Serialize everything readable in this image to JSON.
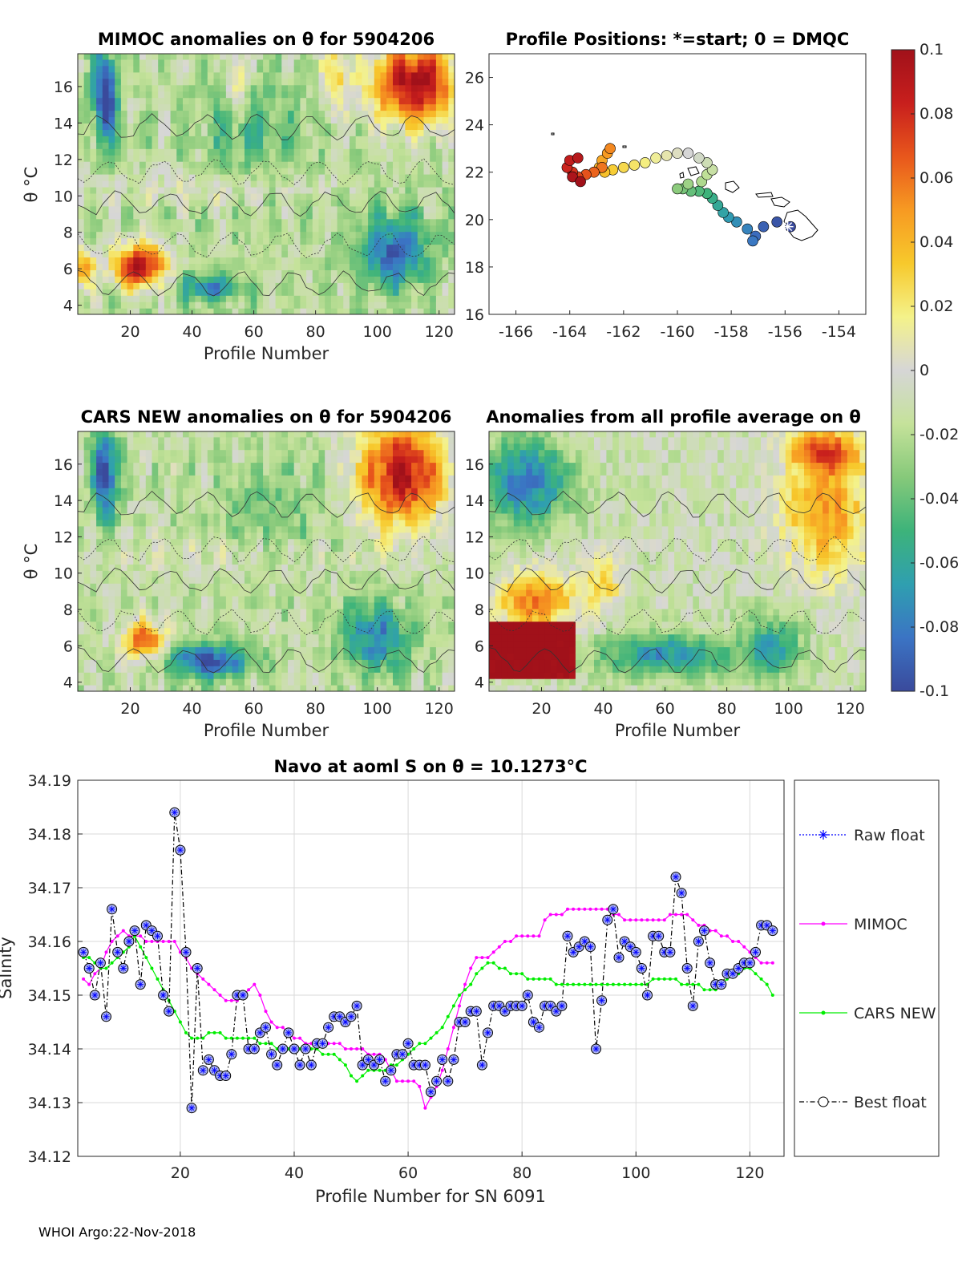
{
  "footer": "WHOI Argo:22-Nov-2018",
  "colors": {
    "colormap": [
      "#3a4a9c",
      "#3b74c4",
      "#2f9fb0",
      "#3db37a",
      "#86c97a",
      "#c5e29a",
      "#d6d6d6",
      "#f4f28a",
      "#f7c92c",
      "#f79a22",
      "#e8571c",
      "#c81f1d",
      "#a1111a"
    ],
    "mimoc": "#ff00ff",
    "cars": "#00ee00",
    "best": "#000000",
    "raw": "#0000ff"
  },
  "colorbar": {
    "ticks": [
      "0.1",
      "0.08",
      "0.06",
      "0.04",
      "0.02",
      "0",
      "-0.02",
      "-0.04",
      "-0.06",
      "-0.08",
      "-0.1"
    ]
  },
  "panels": {
    "mimoc": {
      "title": "MIMOC anomalies on θ  for 5904206",
      "ylabel": "θ °C",
      "xlabel": "Profile Number"
    },
    "cars": {
      "title": "CARS NEW anomalies on θ for 5904206",
      "ylabel": "θ °C",
      "xlabel": "Profile Number"
    },
    "avg": {
      "title": "Anomalies from all profile average on θ",
      "xlabel": "Profile Number"
    },
    "map": {
      "title": "Profile Positions: *=start; 0 = DMQC"
    }
  },
  "salinity": {
    "title": "Navo at aoml S on θ = 10.1273°C",
    "xlabel": "Profile Number for SN 6091",
    "ylabel": "Salinity"
  },
  "chart_data": [
    {
      "type": "heatmap",
      "id": "mimoc",
      "title": "MIMOC anomalies on θ for 5904206",
      "xlabel": "Profile Number",
      "ylabel": "θ °C",
      "xlim": [
        3,
        125
      ],
      "ylim": [
        3.5,
        17.8
      ],
      "xticks": [
        20,
        40,
        60,
        80,
        100,
        120
      ],
      "yticks": [
        4,
        6,
        8,
        10,
        12,
        14,
        16
      ],
      "clim": [
        -0.1,
        0.1
      ],
      "profiles": 124
    },
    {
      "type": "scatter",
      "id": "map",
      "title": "Profile Positions: *=start; 0 = DMQC",
      "xlim": [
        -167,
        -153
      ],
      "ylim": [
        16,
        27
      ],
      "xticks": [
        -166,
        -164,
        -162,
        -160,
        -158,
        -156,
        -154
      ],
      "yticks": [
        16,
        18,
        20,
        22,
        24,
        26
      ],
      "track": [
        [
          -155.8,
          19.7
        ],
        [
          -156.3,
          19.9
        ],
        [
          -156.8,
          19.7
        ],
        [
          -157.1,
          19.3
        ],
        [
          -157.2,
          19.1
        ],
        [
          -157.4,
          19.6
        ],
        [
          -157.8,
          19.9
        ],
        [
          -158.1,
          20.1
        ],
        [
          -158.3,
          20.3
        ],
        [
          -158.5,
          20.6
        ],
        [
          -158.7,
          20.9
        ],
        [
          -158.9,
          21.1
        ],
        [
          -159.2,
          21.2
        ],
        [
          -159.5,
          21.2
        ],
        [
          -159.8,
          21.3
        ],
        [
          -160.0,
          21.3
        ],
        [
          -159.6,
          21.5
        ],
        [
          -159.1,
          21.6
        ],
        [
          -158.9,
          21.9
        ],
        [
          -158.7,
          22.1
        ],
        [
          -158.9,
          22.4
        ],
        [
          -159.2,
          22.6
        ],
        [
          -159.6,
          22.8
        ],
        [
          -160.0,
          22.8
        ],
        [
          -160.4,
          22.7
        ],
        [
          -160.8,
          22.6
        ],
        [
          -161.2,
          22.4
        ],
        [
          -161.6,
          22.3
        ],
        [
          -162.0,
          22.2
        ],
        [
          -162.4,
          22.1
        ],
        [
          -162.7,
          22.0
        ],
        [
          -162.9,
          22.2
        ],
        [
          -162.8,
          22.5
        ],
        [
          -162.6,
          22.8
        ],
        [
          -162.5,
          23.0
        ],
        [
          -162.8,
          22.2
        ],
        [
          -163.1,
          22.0
        ],
        [
          -163.4,
          21.9
        ],
        [
          -163.7,
          21.8
        ],
        [
          -163.9,
          22.0
        ],
        [
          -164.1,
          22.2
        ],
        [
          -164.0,
          22.5
        ],
        [
          -163.7,
          22.6
        ],
        [
          -163.9,
          21.8
        ],
        [
          -163.6,
          21.6
        ]
      ],
      "start": [
        -155.9,
        19.7
      ]
    },
    {
      "type": "heatmap",
      "id": "cars",
      "title": "CARS NEW anomalies on θ for 5904206",
      "xlabel": "Profile Number",
      "ylabel": "θ °C",
      "xlim": [
        3,
        125
      ],
      "ylim": [
        3.5,
        17.8
      ],
      "xticks": [
        20,
        40,
        60,
        80,
        100,
        120
      ],
      "yticks": [
        4,
        6,
        8,
        10,
        12,
        14,
        16
      ],
      "clim": [
        -0.1,
        0.1
      ],
      "profiles": 124
    },
    {
      "type": "heatmap",
      "id": "avg",
      "title": "Anomalies from all profile average on θ",
      "xlabel": "Profile Number",
      "xlim": [
        3,
        125
      ],
      "ylim": [
        3.5,
        17.8
      ],
      "xticks": [
        20,
        40,
        60,
        80,
        100,
        120
      ],
      "yticks": [
        4,
        6,
        8,
        10,
        12,
        14,
        16
      ],
      "clim": [
        -0.1,
        0.1
      ],
      "profiles": 124
    },
    {
      "type": "line",
      "id": "salinity",
      "title": "Navo at aoml S on θ = 10.1273°C",
      "xlabel": "Profile Number for SN 6091",
      "ylabel": "Salinity",
      "xlim": [
        2,
        126
      ],
      "ylim": [
        34.12,
        34.19
      ],
      "xticks": [
        20,
        40,
        60,
        80,
        100,
        120
      ],
      "yticks": [
        34.12,
        34.13,
        34.14,
        34.15,
        34.16,
        34.17,
        34.18,
        34.19
      ],
      "grid": true,
      "legend_position": "outside-right",
      "legend": [
        "Raw float",
        "MIMOC",
        "CARS NEW",
        "Best float"
      ],
      "series": [
        {
          "name": "MIMOC",
          "x_start": 3,
          "x_step": 1,
          "values": [
            34.153,
            34.152,
            34.154,
            34.155,
            34.158,
            34.16,
            34.161,
            34.162,
            34.161,
            34.161,
            34.161,
            34.16,
            34.16,
            34.16,
            34.16,
            34.16,
            34.16,
            34.158,
            34.157,
            34.155,
            34.154,
            34.153,
            34.152,
            34.151,
            34.15,
            34.149,
            34.149,
            34.149,
            34.15,
            34.151,
            34.152,
            34.15,
            34.147,
            34.145,
            34.144,
            34.144,
            34.143,
            34.142,
            34.142,
            34.141,
            34.141,
            34.141,
            34.141,
            34.141,
            34.141,
            34.141,
            34.14,
            34.14,
            34.14,
            34.14,
            34.139,
            34.139,
            34.139,
            34.138,
            34.136,
            34.134,
            34.134,
            34.134,
            34.134,
            34.133,
            34.129,
            34.131,
            34.133,
            34.136,
            34.14,
            34.144,
            34.148,
            34.152,
            34.155,
            34.157,
            34.157,
            34.157,
            34.158,
            34.159,
            34.16,
            34.16,
            34.161,
            34.161,
            34.161,
            34.161,
            34.161,
            34.164,
            34.165,
            34.165,
            34.165,
            34.166,
            34.166,
            34.166,
            34.166,
            34.166,
            34.166,
            34.166,
            34.166,
            34.165,
            34.165,
            34.164,
            34.164,
            34.164,
            34.164,
            34.164,
            34.164,
            34.164,
            34.164,
            34.165,
            34.165,
            34.165,
            34.165,
            34.164,
            34.163,
            34.163,
            34.162,
            34.162,
            34.161,
            34.161,
            34.16,
            34.16,
            34.159,
            34.158,
            34.157,
            34.156,
            34.156,
            34.156
          ]
        },
        {
          "name": "CARS NEW",
          "x_start": 3,
          "x_step": 1,
          "values": [
            34.157,
            34.157,
            34.156,
            34.155,
            34.155,
            34.156,
            34.157,
            34.158,
            34.159,
            34.161,
            34.159,
            34.157,
            34.155,
            34.153,
            34.151,
            34.149,
            34.147,
            34.145,
            34.143,
            34.142,
            34.142,
            34.142,
            34.143,
            34.143,
            34.143,
            34.142,
            34.142,
            34.142,
            34.142,
            34.142,
            34.142,
            34.141,
            34.141,
            34.141,
            34.14,
            34.14,
            34.14,
            34.14,
            34.14,
            34.14,
            34.14,
            34.14,
            34.139,
            34.139,
            34.139,
            34.138,
            34.137,
            34.135,
            34.134,
            34.135,
            34.136,
            34.136,
            34.136,
            34.136,
            34.137,
            34.137,
            34.138,
            34.139,
            34.14,
            34.141,
            34.141,
            34.142,
            34.143,
            34.144,
            34.146,
            34.148,
            34.15,
            34.151,
            34.152,
            34.154,
            34.155,
            34.156,
            34.156,
            34.155,
            34.155,
            34.154,
            34.154,
            34.154,
            34.153,
            34.153,
            34.153,
            34.153,
            34.153,
            34.152,
            34.152,
            34.152,
            34.152,
            34.152,
            34.152,
            34.152,
            34.152,
            34.152,
            34.152,
            34.152,
            34.152,
            34.152,
            34.152,
            34.152,
            34.152,
            34.152,
            34.153,
            34.153,
            34.153,
            34.153,
            34.153,
            34.152,
            34.152,
            34.152,
            34.152,
            34.151,
            34.151,
            34.151,
            34.152,
            34.153,
            34.154,
            34.154,
            34.155,
            34.155,
            34.154,
            34.153,
            34.152,
            34.15
          ]
        },
        {
          "name": "Best float",
          "x_start": 3,
          "x_step": 1,
          "values": [
            34.158,
            34.155,
            34.15,
            34.156,
            34.146,
            34.166,
            34.158,
            34.155,
            34.16,
            34.162,
            34.152,
            34.163,
            34.162,
            34.161,
            34.15,
            34.147,
            34.184,
            34.177,
            34.158,
            34.129,
            34.155,
            34.136,
            34.138,
            34.136,
            34.135,
            34.135,
            34.139,
            34.15,
            34.15,
            34.14,
            34.14,
            34.143,
            34.144,
            34.139,
            34.137,
            34.14,
            34.143,
            34.14,
            34.137,
            34.14,
            34.137,
            34.141,
            34.141,
            34.144,
            34.146,
            34.146,
            34.145,
            34.146,
            34.148,
            34.137,
            34.138,
            34.137,
            34.138,
            34.134,
            34.136,
            34.139,
            34.139,
            34.141,
            34.137,
            34.137,
            34.137,
            34.132,
            34.134,
            34.138,
            34.134,
            34.138,
            34.145,
            34.145,
            34.147,
            34.147,
            34.137,
            34.143,
            34.148,
            34.148,
            34.147,
            34.148,
            34.148,
            34.148,
            34.15,
            34.145,
            34.144,
            34.148,
            34.148,
            34.147,
            34.148,
            34.161,
            34.158,
            34.159,
            34.16,
            34.159,
            34.14,
            34.149,
            34.164,
            34.166,
            34.157,
            34.16,
            34.159,
            34.158,
            34.155,
            34.15,
            34.161,
            34.161,
            34.158,
            34.158,
            34.172,
            34.169,
            34.155,
            34.148,
            34.16,
            34.162,
            34.156,
            34.152,
            34.152,
            34.154,
            34.154,
            34.155,
            34.156,
            34.156,
            34.158,
            34.163,
            34.163,
            34.162
          ]
        }
      ]
    }
  ]
}
